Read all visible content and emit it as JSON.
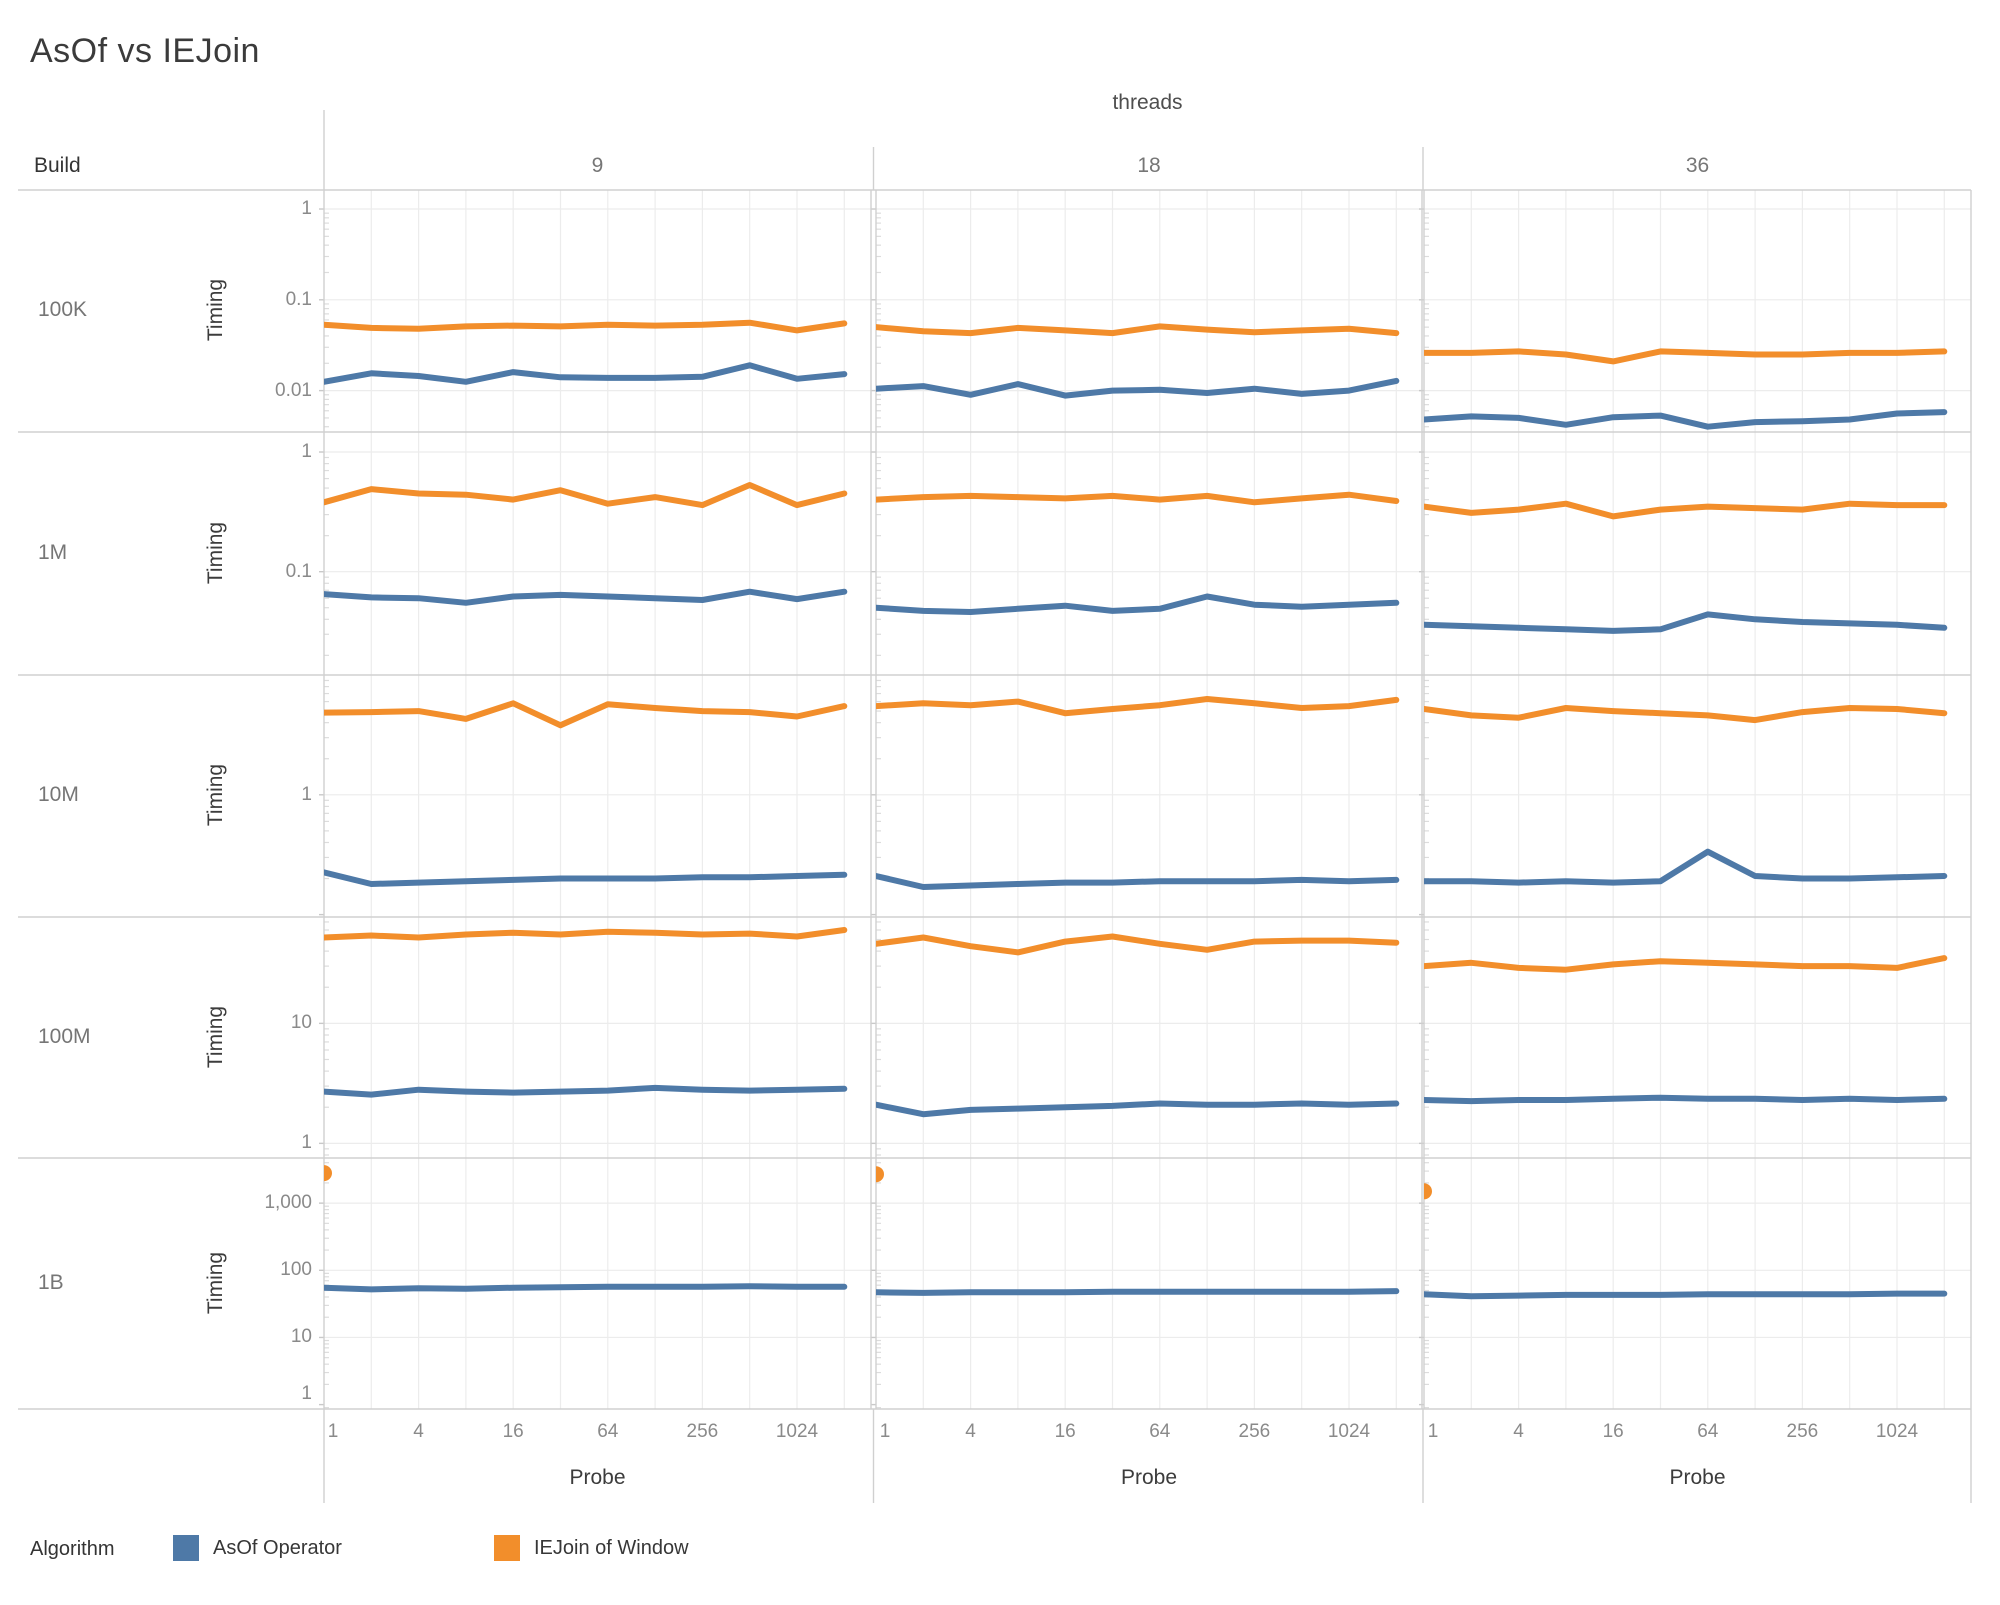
{
  "title": "AsOf vs IEJoin",
  "facet": {
    "column_header": "threads",
    "row_header": "Build",
    "columns": [
      "9",
      "18",
      "36"
    ],
    "rows": [
      "100K",
      "1M",
      "10M",
      "100M",
      "1B"
    ]
  },
  "axes": {
    "y_title": "Timing",
    "x_title": "Probe",
    "x_ticks": [
      {
        "label": "1",
        "value": 1
      },
      {
        "label": "4",
        "value": 4
      },
      {
        "label": "16",
        "value": 16
      },
      {
        "label": "64",
        "value": 64
      },
      {
        "label": "256",
        "value": 256
      },
      {
        "label": "1024",
        "value": 1024
      }
    ]
  },
  "legend": {
    "title": "Algorithm",
    "items": [
      {
        "label": "AsOf Operator",
        "color": "#4e79a7"
      },
      {
        "label": "IEJoin of Window",
        "color": "#f28e2b"
      }
    ]
  },
  "chart_data": {
    "type": "line",
    "title": "AsOf vs IEJoin",
    "x_scale": "log2",
    "y_scale": "log10",
    "xlabel": "Probe",
    "ylabel": "Timing",
    "legend_position": "bottom",
    "grid": true,
    "probes": [
      1,
      2,
      4,
      8,
      16,
      32,
      64,
      128,
      256,
      512,
      1024,
      2048
    ],
    "series_colors": {
      "asof": "#4e79a7",
      "iejoin": "#f28e2b"
    },
    "series_names": {
      "asof": "AsOf Operator",
      "iejoin": "IEJoin of Window"
    },
    "row_scales": [
      {
        "row": "100K",
        "y_top": 1.62,
        "y_bottom": 0.0035,
        "ticks": [
          {
            "label": "1",
            "value": 1
          },
          {
            "label": "0.1",
            "value": 0.1
          },
          {
            "label": "0.01",
            "value": 0.01
          }
        ]
      },
      {
        "row": "1M",
        "y_top": 1.47,
        "y_bottom": 0.0137,
        "ticks": [
          {
            "label": "1",
            "value": 1
          },
          {
            "label": "0.1",
            "value": 0.1
          }
        ]
      },
      {
        "row": "10M",
        "y_top": 10,
        "y_bottom": 0.0955,
        "ticks": [
          {
            "label": "1",
            "value": 1
          }
        ]
      },
      {
        "row": "100M",
        "y_top": 77,
        "y_bottom": 0.755,
        "ticks": [
          {
            "label": "10",
            "value": 10
          },
          {
            "label": "1",
            "value": 1
          }
        ]
      },
      {
        "row": "1B",
        "y_top": 4700,
        "y_bottom": 0.86,
        "ticks": [
          {
            "label": "1,000",
            "value": 1000
          },
          {
            "label": "100",
            "value": 100
          },
          {
            "label": "10",
            "value": 10
          },
          {
            "label": "1",
            "value": 1
          }
        ]
      }
    ],
    "cells": [
      {
        "build": "100K",
        "threads": 9,
        "asof": [
          0.0125,
          0.0155,
          0.0145,
          0.0125,
          0.016,
          0.014,
          0.0138,
          0.0138,
          0.0142,
          0.019,
          0.0135,
          0.0152
        ],
        "iejoin": [
          0.053,
          0.049,
          0.048,
          0.051,
          0.052,
          0.051,
          0.053,
          0.052,
          0.053,
          0.056,
          0.046,
          0.055
        ]
      },
      {
        "build": "100K",
        "threads": 18,
        "asof": [
          0.0105,
          0.0112,
          0.009,
          0.0118,
          0.0088,
          0.01,
          0.0102,
          0.0094,
          0.0105,
          0.0092,
          0.01,
          0.0128
        ],
        "iejoin": [
          0.05,
          0.045,
          0.043,
          0.049,
          0.046,
          0.043,
          0.051,
          0.047,
          0.044,
          0.046,
          0.048,
          0.043
        ]
      },
      {
        "build": "100K",
        "threads": 36,
        "asof": [
          0.0048,
          0.0052,
          0.005,
          0.0042,
          0.0051,
          0.0053,
          0.004,
          0.0045,
          0.0046,
          0.0048,
          0.0056,
          0.0058
        ],
        "iejoin": [
          0.026,
          0.026,
          0.027,
          0.025,
          0.021,
          0.027,
          0.026,
          0.025,
          0.025,
          0.026,
          0.026,
          0.027
        ]
      },
      {
        "build": "1M",
        "threads": 9,
        "asof": [
          0.065,
          0.061,
          0.06,
          0.055,
          0.062,
          0.064,
          0.062,
          0.06,
          0.058,
          0.068,
          0.059,
          0.068
        ],
        "iejoin": [
          0.38,
          0.49,
          0.45,
          0.44,
          0.4,
          0.48,
          0.37,
          0.42,
          0.36,
          0.53,
          0.36,
          0.45
        ]
      },
      {
        "build": "1M",
        "threads": 18,
        "asof": [
          0.05,
          0.047,
          0.046,
          0.049,
          0.052,
          0.047,
          0.049,
          0.062,
          0.053,
          0.051,
          0.053,
          0.055
        ],
        "iejoin": [
          0.4,
          0.42,
          0.43,
          0.42,
          0.41,
          0.43,
          0.4,
          0.43,
          0.38,
          0.41,
          0.44,
          0.39
        ]
      },
      {
        "build": "1M",
        "threads": 36,
        "asof": [
          0.036,
          0.035,
          0.034,
          0.033,
          0.032,
          0.033,
          0.044,
          0.04,
          0.038,
          0.037,
          0.036,
          0.034
        ],
        "iejoin": [
          0.35,
          0.31,
          0.33,
          0.37,
          0.29,
          0.33,
          0.35,
          0.34,
          0.33,
          0.37,
          0.36,
          0.36
        ]
      },
      {
        "build": "10M",
        "threads": 9,
        "asof": [
          0.225,
          0.18,
          0.185,
          0.19,
          0.195,
          0.2,
          0.2,
          0.2,
          0.205,
          0.205,
          0.21,
          0.215
        ],
        "iejoin": [
          4.85,
          4.9,
          5.0,
          4.3,
          5.8,
          3.8,
          5.7,
          5.3,
          5.0,
          4.9,
          4.5,
          5.5
        ]
      },
      {
        "build": "10M",
        "threads": 18,
        "asof": [
          0.21,
          0.17,
          0.175,
          0.18,
          0.185,
          0.185,
          0.19,
          0.19,
          0.19,
          0.195,
          0.19,
          0.195
        ],
        "iejoin": [
          5.5,
          5.8,
          5.6,
          6.0,
          4.8,
          5.2,
          5.6,
          6.3,
          5.8,
          5.3,
          5.5,
          6.2
        ]
      },
      {
        "build": "10M",
        "threads": 36,
        "asof": [
          0.19,
          0.19,
          0.185,
          0.19,
          0.185,
          0.19,
          0.335,
          0.21,
          0.2,
          0.2,
          0.205,
          0.21
        ],
        "iejoin": [
          5.2,
          4.6,
          4.4,
          5.3,
          5.0,
          4.8,
          4.6,
          4.2,
          4.9,
          5.3,
          5.2,
          4.8
        ]
      },
      {
        "build": "100M",
        "threads": 9,
        "asof": [
          2.7,
          2.55,
          2.8,
          2.7,
          2.65,
          2.7,
          2.75,
          2.9,
          2.8,
          2.75,
          2.8,
          2.85
        ],
        "iejoin": [
          52,
          54,
          52,
          55,
          57,
          55,
          58,
          57,
          55,
          56,
          53,
          60
        ]
      },
      {
        "build": "100M",
        "threads": 18,
        "asof": [
          2.1,
          1.75,
          1.9,
          1.95,
          2.0,
          2.05,
          2.15,
          2.1,
          2.1,
          2.15,
          2.1,
          2.15
        ],
        "iejoin": [
          46,
          52,
          44,
          39,
          48,
          53,
          46,
          41,
          48,
          49,
          49,
          47
        ]
      },
      {
        "build": "100M",
        "threads": 36,
        "asof": [
          2.3,
          2.25,
          2.3,
          2.3,
          2.35,
          2.4,
          2.35,
          2.35,
          2.3,
          2.35,
          2.3,
          2.35
        ],
        "iejoin": [
          30,
          32,
          29,
          28,
          31,
          33,
          32,
          31,
          30,
          30,
          29,
          35
        ]
      },
      {
        "build": "1B",
        "threads": 9,
        "asof": [
          55,
          52,
          54,
          53,
          55,
          56,
          57,
          57,
          57,
          58,
          57,
          57
        ],
        "iejoin": [
          2800
        ]
      },
      {
        "build": "1B",
        "threads": 18,
        "asof": [
          47,
          46,
          47,
          47,
          47,
          48,
          48,
          48,
          48,
          48,
          48,
          49
        ],
        "iejoin": [
          2700
        ]
      },
      {
        "build": "1B",
        "threads": 36,
        "asof": [
          44,
          41,
          42,
          43,
          43,
          43,
          44,
          44,
          44,
          44,
          45,
          45
        ],
        "iejoin": [
          1500
        ]
      }
    ]
  }
}
